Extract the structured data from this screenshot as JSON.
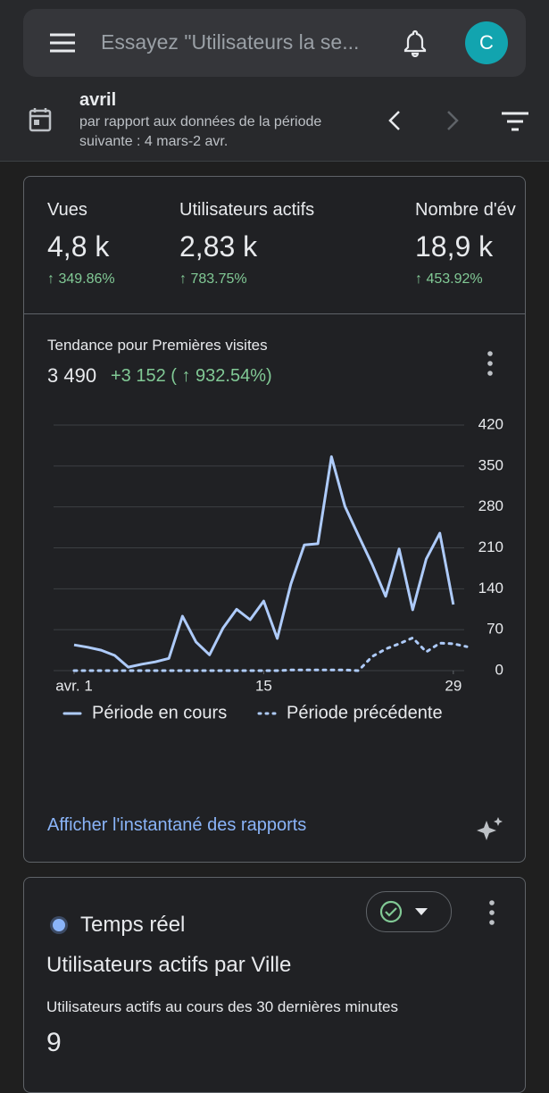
{
  "search": {
    "placeholder": "Essayez \"Utilisateurs la se...",
    "avatar": "C"
  },
  "period": {
    "title": "avril",
    "subtitle": "par rapport aux données de la période suivante : 4 mars-2 avr."
  },
  "metrics": [
    {
      "label": "Vues",
      "value": "4,8 k",
      "change": "↑ 349.86%"
    },
    {
      "label": "Utilisateurs actifs",
      "value": "2,83 k",
      "change": "↑ 783.75%"
    },
    {
      "label": "Nombre d'év",
      "value": "18,9 k",
      "change": "↑ 453.92%"
    }
  ],
  "trend": {
    "title": "Tendance pour Premières visites",
    "total": "3 490",
    "delta": "+3 152 ( ↑ 932.54%)"
  },
  "chart_data": {
    "type": "line",
    "x": [
      1,
      2,
      3,
      4,
      5,
      6,
      7,
      8,
      9,
      10,
      11,
      12,
      13,
      14,
      15,
      16,
      17,
      18,
      19,
      20,
      21,
      22,
      23,
      24,
      25,
      26,
      27,
      28,
      29,
      30
    ],
    "xlim": [
      1,
      30
    ],
    "xticks": [
      {
        "value": 1,
        "label": "avr. 1"
      },
      15,
      29
    ],
    "ylim": [
      0,
      420
    ],
    "yticks": [
      0,
      70,
      140,
      210,
      280,
      350,
      420
    ],
    "grid": true,
    "series": [
      {
        "name": "Période en cours",
        "color": "#aecbfa",
        "dash": false,
        "values": [
          44,
          40,
          35,
          26,
          6,
          11,
          15,
          21,
          93,
          49,
          27,
          73,
          105,
          87,
          119,
          55,
          148,
          215,
          217,
          366,
          281,
          231,
          182,
          127,
          208,
          104,
          191,
          235,
          113,
          null
        ]
      },
      {
        "name": "Période précédente",
        "color": "#aecbfa",
        "dash": true,
        "values": [
          0,
          0,
          0,
          0,
          0,
          0,
          0,
          0,
          0,
          0,
          0,
          0,
          0,
          0,
          0,
          0,
          1,
          1,
          1,
          1,
          1,
          0,
          24,
          37,
          46,
          56,
          32,
          47,
          46,
          41
        ]
      }
    ]
  },
  "report_link": "Afficher l'instantané des rapports",
  "realtime": {
    "badge": "Temps réel",
    "title": "Utilisateurs actifs par Ville",
    "subtitle": "Utilisateurs actifs au cours des 30 dernières minutes",
    "value": "9"
  }
}
